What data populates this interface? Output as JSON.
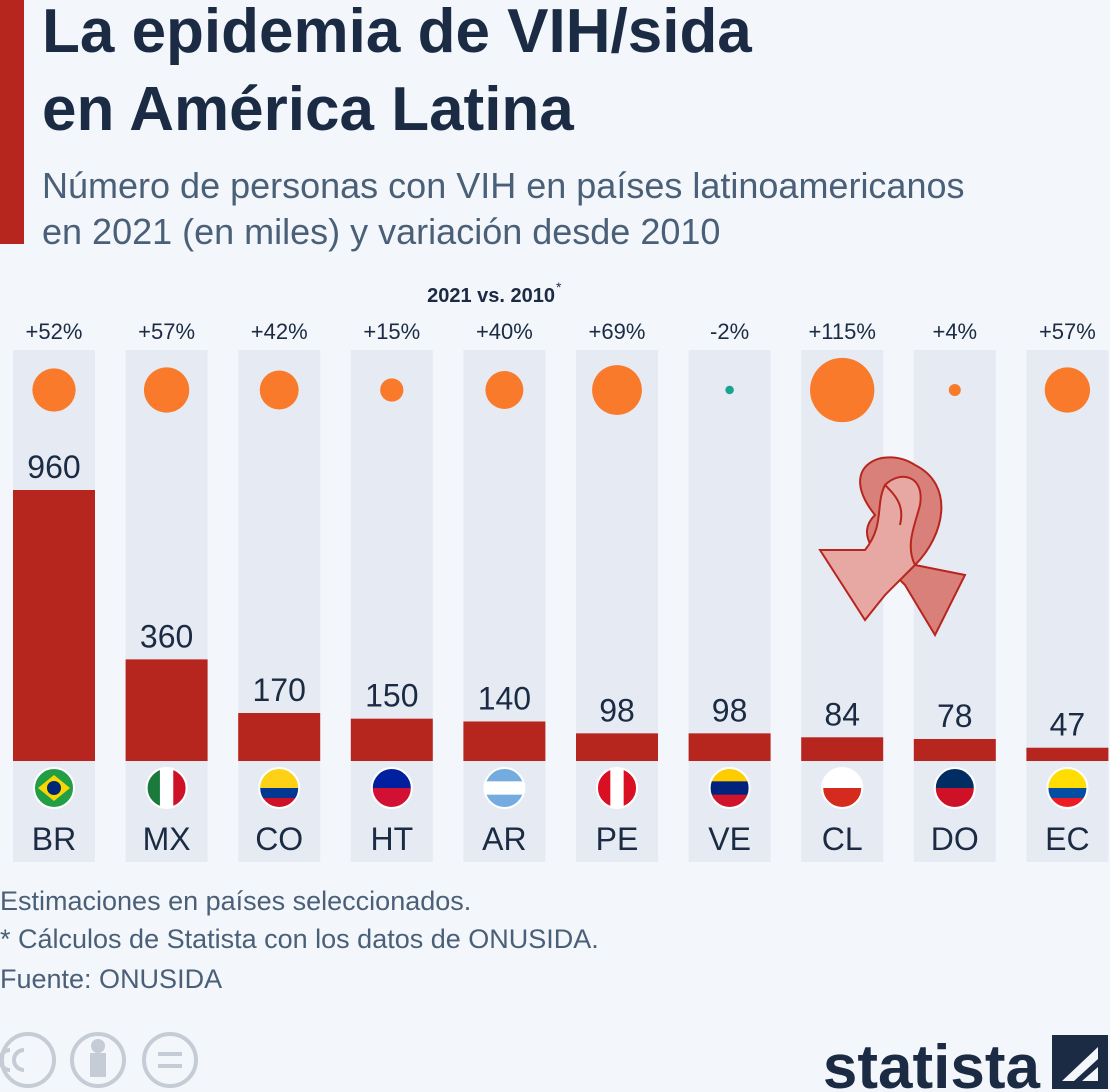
{
  "chart_data": {
    "type": "bar",
    "title": [
      "La epidemia de VIH/sida",
      "en América Latina"
    ],
    "subtitle": [
      "Número de personas con VIH en países latinoamericanos",
      "en 2021 (en miles) y variación desde 2010"
    ],
    "categories": [
      "BR",
      "MX",
      "CO",
      "HT",
      "AR",
      "PE",
      "VE",
      "CL",
      "DO",
      "EC"
    ],
    "values": [
      960,
      360,
      170,
      150,
      140,
      98,
      98,
      84,
      78,
      47
    ],
    "color": "#b7261e",
    "ylim": [
      0,
      960
    ],
    "change": {
      "title": "2021 vs. 2010",
      "marker": "*",
      "values": [
        52,
        57,
        42,
        15,
        40,
        69,
        -2,
        115,
        4,
        57
      ],
      "value_labels": [
        "+52%",
        "+57%",
        "+42%",
        "+15%",
        "+40%",
        "+69%",
        "-2%",
        "+115%",
        "+4%",
        "+57%"
      ],
      "positive_color": "#f97a2a",
      "negative_color": "#1aa38f"
    },
    "notes": [
      "Estimaciones en países seleccionados.",
      "* Cálculos de Statista con los datos de ONUSIDA.",
      "Fuente: ONUSIDA"
    ],
    "brand": "statista"
  }
}
